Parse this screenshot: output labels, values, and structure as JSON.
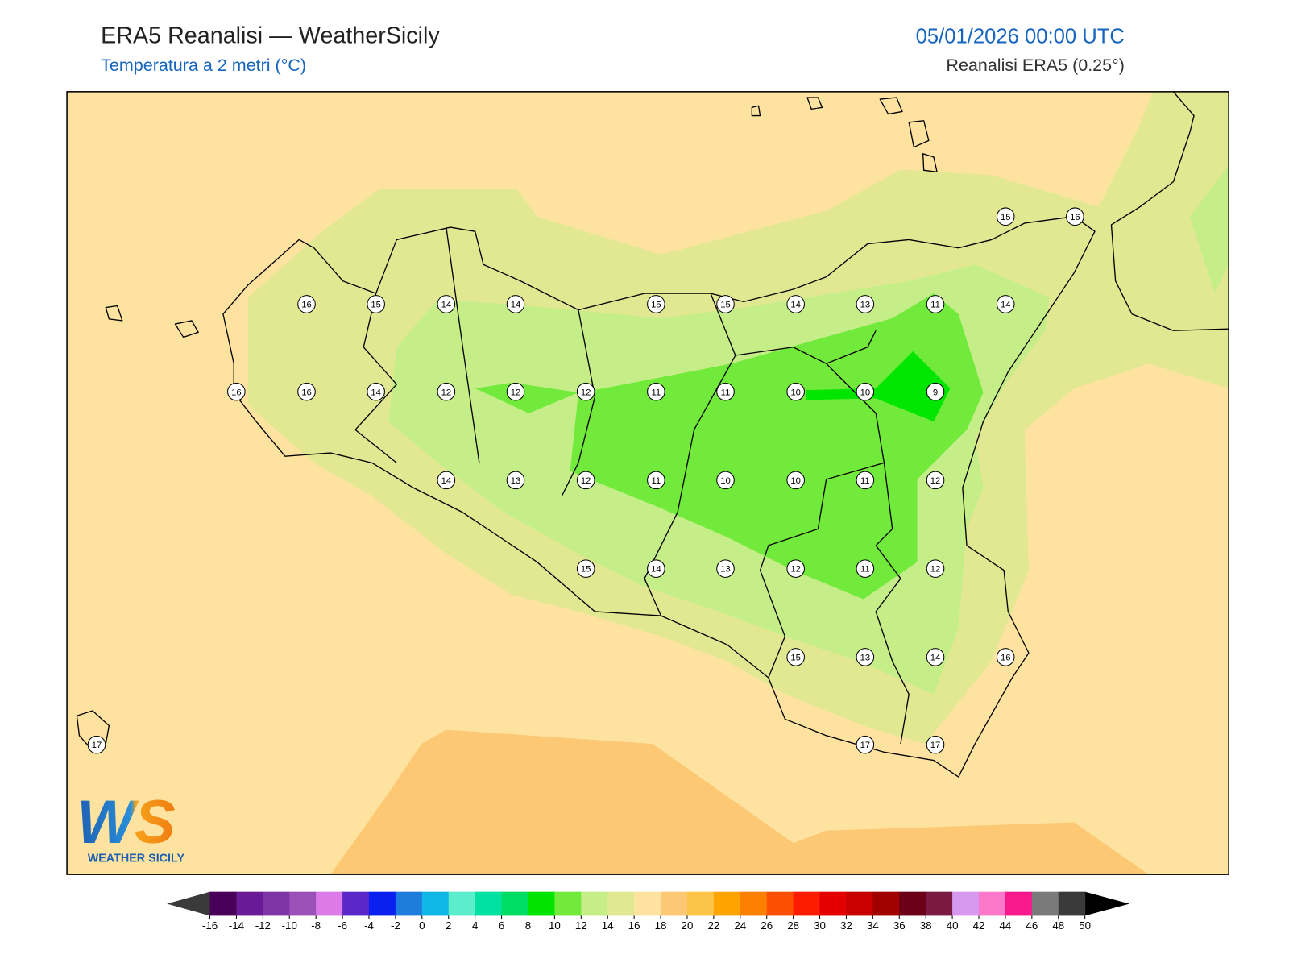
{
  "header": {
    "title": "ERA5 Reanalisi — WeatherSicily",
    "subtitle": "Temperatura a 2 metri (°C)",
    "date": "05/01/2026 00:00 UTC",
    "source": "Reanalisi ERA5 (0.25°)"
  },
  "stations": [
    15,
    16,
    16,
    15,
    14,
    14,
    15,
    15,
    14,
    13,
    11,
    14,
    16,
    16,
    14,
    12,
    12,
    12,
    11,
    11,
    10,
    10,
    9,
    14,
    13,
    12,
    11,
    10,
    10,
    11,
    12,
    15,
    14,
    13,
    12,
    11,
    12,
    15,
    13,
    14,
    16,
    17,
    17,
    17
  ],
  "colorbar": {
    "ticks": [
      -16,
      -14,
      -12,
      -10,
      -8,
      -6,
      -4,
      -2,
      0,
      2,
      4,
      6,
      8,
      10,
      12,
      14,
      16,
      18,
      20,
      22,
      24,
      26,
      28,
      30,
      32,
      34,
      36,
      38,
      40,
      42,
      44,
      46,
      48,
      50
    ],
    "colors": [
      "#480058",
      "#6a1a96",
      "#7e35a6",
      "#9b50b8",
      "#dc7be8",
      "#5b27c9",
      "#0a20f0",
      "#1e7ddc",
      "#0fb6e6",
      "#5ceecc",
      "#00e0a0",
      "#00dc64",
      "#00e400",
      "#72ea3c",
      "#c6ee88",
      "#e2e892",
      "#fee3a0",
      "#fcc874",
      "#fdc44a",
      "#fea400",
      "#fd8000",
      "#fc5000",
      "#fd1c00",
      "#e50000",
      "#c80000",
      "#a00000",
      "#6b0018",
      "#7a1a40",
      "#d898f0",
      "#fb79c8",
      "#f8198c",
      "#7a7a7a",
      "#3a3a3a"
    ],
    "extend_colors": [
      "#3a3a3a",
      "#000000"
    ]
  },
  "logo": {
    "mark": "WS",
    "name": "WEATHER SICILY"
  }
}
